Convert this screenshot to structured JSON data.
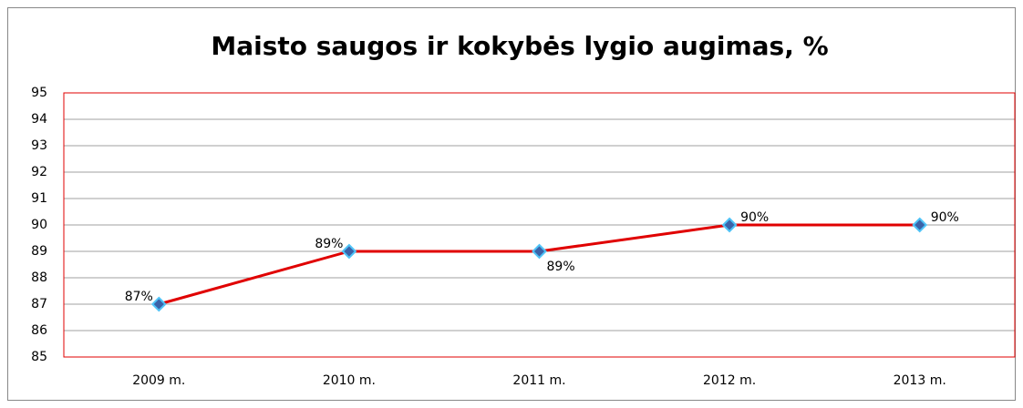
{
  "chart_data": {
    "type": "line",
    "title": "Maisto saugos ir kokybės lygio augimas, %",
    "categories": [
      "2009 m.",
      "2010 m.",
      "2011 m.",
      "2012 m.",
      "2013 m."
    ],
    "series": [
      {
        "name": null,
        "color": "#e00000",
        "values": [
          87,
          89,
          89,
          90,
          90
        ],
        "value_labels": [
          "87%",
          "89%",
          "89%",
          "90%",
          "90%"
        ]
      }
    ],
    "marker_color": "#3b62a8",
    "ylim": [
      85,
      95
    ],
    "yticks": [
      85,
      86,
      87,
      88,
      89,
      90,
      91,
      92,
      93,
      94,
      95
    ],
    "grid": true
  }
}
